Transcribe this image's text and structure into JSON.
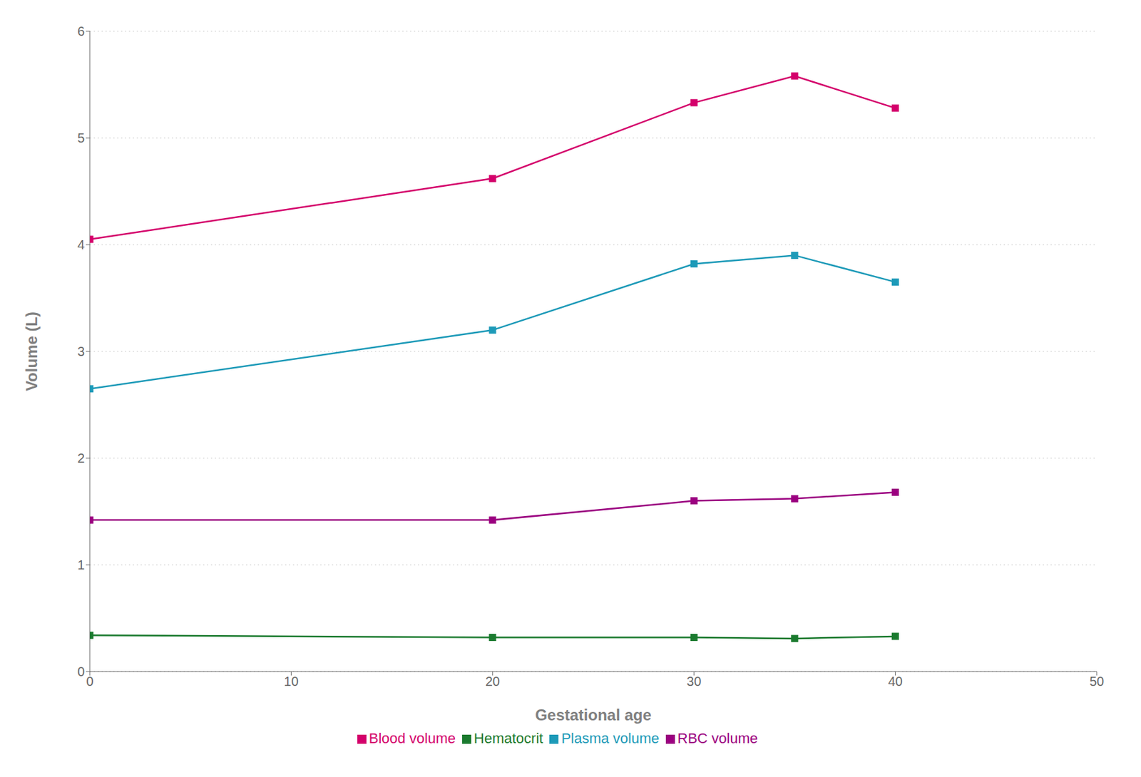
{
  "chart_data": {
    "type": "line",
    "xlabel": "Gestational age",
    "ylabel": "Volume (L)",
    "x": [
      0,
      20,
      30,
      35,
      40
    ],
    "series": [
      {
        "name": "Blood volume",
        "color": "#d4006b",
        "marker": "square",
        "values": [
          4.05,
          4.62,
          5.33,
          5.58,
          5.28
        ]
      },
      {
        "name": "Plasma volume",
        "color": "#1d9ab8",
        "marker": "square",
        "values": [
          2.65,
          3.2,
          3.82,
          3.9,
          3.65
        ]
      },
      {
        "name": "RBC volume",
        "color": "#9b0080",
        "marker": "square",
        "values": [
          1.42,
          1.42,
          1.6,
          1.62,
          1.68
        ]
      },
      {
        "name": "Hematocrit",
        "color": "#1a7a2e",
        "marker": "square",
        "values": [
          0.34,
          0.32,
          0.32,
          0.31,
          0.33
        ]
      }
    ],
    "xlim": [
      0,
      50
    ],
    "ylim": [
      0,
      6
    ],
    "xticks": [
      0,
      10,
      20,
      30,
      40,
      50
    ],
    "yticks": [
      0,
      1,
      2,
      3,
      4,
      5,
      6
    ],
    "grid": true,
    "legend": "bottom"
  }
}
